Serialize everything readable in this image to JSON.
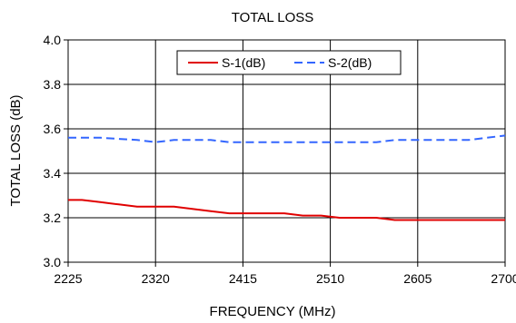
{
  "chart_data": {
    "type": "line",
    "title": "TOTAL  LOSS",
    "xlabel": "FREQUENCY (MHz)",
    "ylabel": "TOTAL  LOSS (dB)",
    "xlim": [
      2225,
      2700
    ],
    "ylim": [
      3.0,
      4.0
    ],
    "x_ticks": [
      "2225",
      "2320",
      "2415",
      "2510",
      "2605",
      "2700"
    ],
    "y_ticks": [
      "3.0",
      "3.2",
      "3.4",
      "3.6",
      "3.8",
      "4.0"
    ],
    "grid": true,
    "legend_position": "top-center",
    "series": [
      {
        "name": "S-1(dB)",
        "color": "#e00000",
        "style": "solid",
        "x": [
          2225,
          2240,
          2260,
          2280,
          2300,
          2320,
          2340,
          2360,
          2380,
          2400,
          2415,
          2440,
          2460,
          2480,
          2500,
          2520,
          2540,
          2560,
          2580,
          2605,
          2620,
          2640,
          2660,
          2680,
          2700
        ],
        "values": [
          3.28,
          3.28,
          3.27,
          3.26,
          3.25,
          3.25,
          3.25,
          3.24,
          3.23,
          3.22,
          3.22,
          3.22,
          3.22,
          3.21,
          3.21,
          3.2,
          3.2,
          3.2,
          3.19,
          3.19,
          3.19,
          3.19,
          3.19,
          3.19,
          3.19
        ]
      },
      {
        "name": "S-2(dB)",
        "color": "#3366ff",
        "style": "dashed",
        "x": [
          2225,
          2260,
          2300,
          2320,
          2340,
          2360,
          2380,
          2400,
          2415,
          2440,
          2460,
          2480,
          2500,
          2520,
          2540,
          2560,
          2580,
          2605,
          2620,
          2640,
          2660,
          2680,
          2700
        ],
        "values": [
          3.56,
          3.56,
          3.55,
          3.54,
          3.55,
          3.55,
          3.55,
          3.54,
          3.54,
          3.54,
          3.54,
          3.54,
          3.54,
          3.54,
          3.54,
          3.54,
          3.55,
          3.55,
          3.55,
          3.55,
          3.55,
          3.56,
          3.57
        ]
      }
    ]
  }
}
